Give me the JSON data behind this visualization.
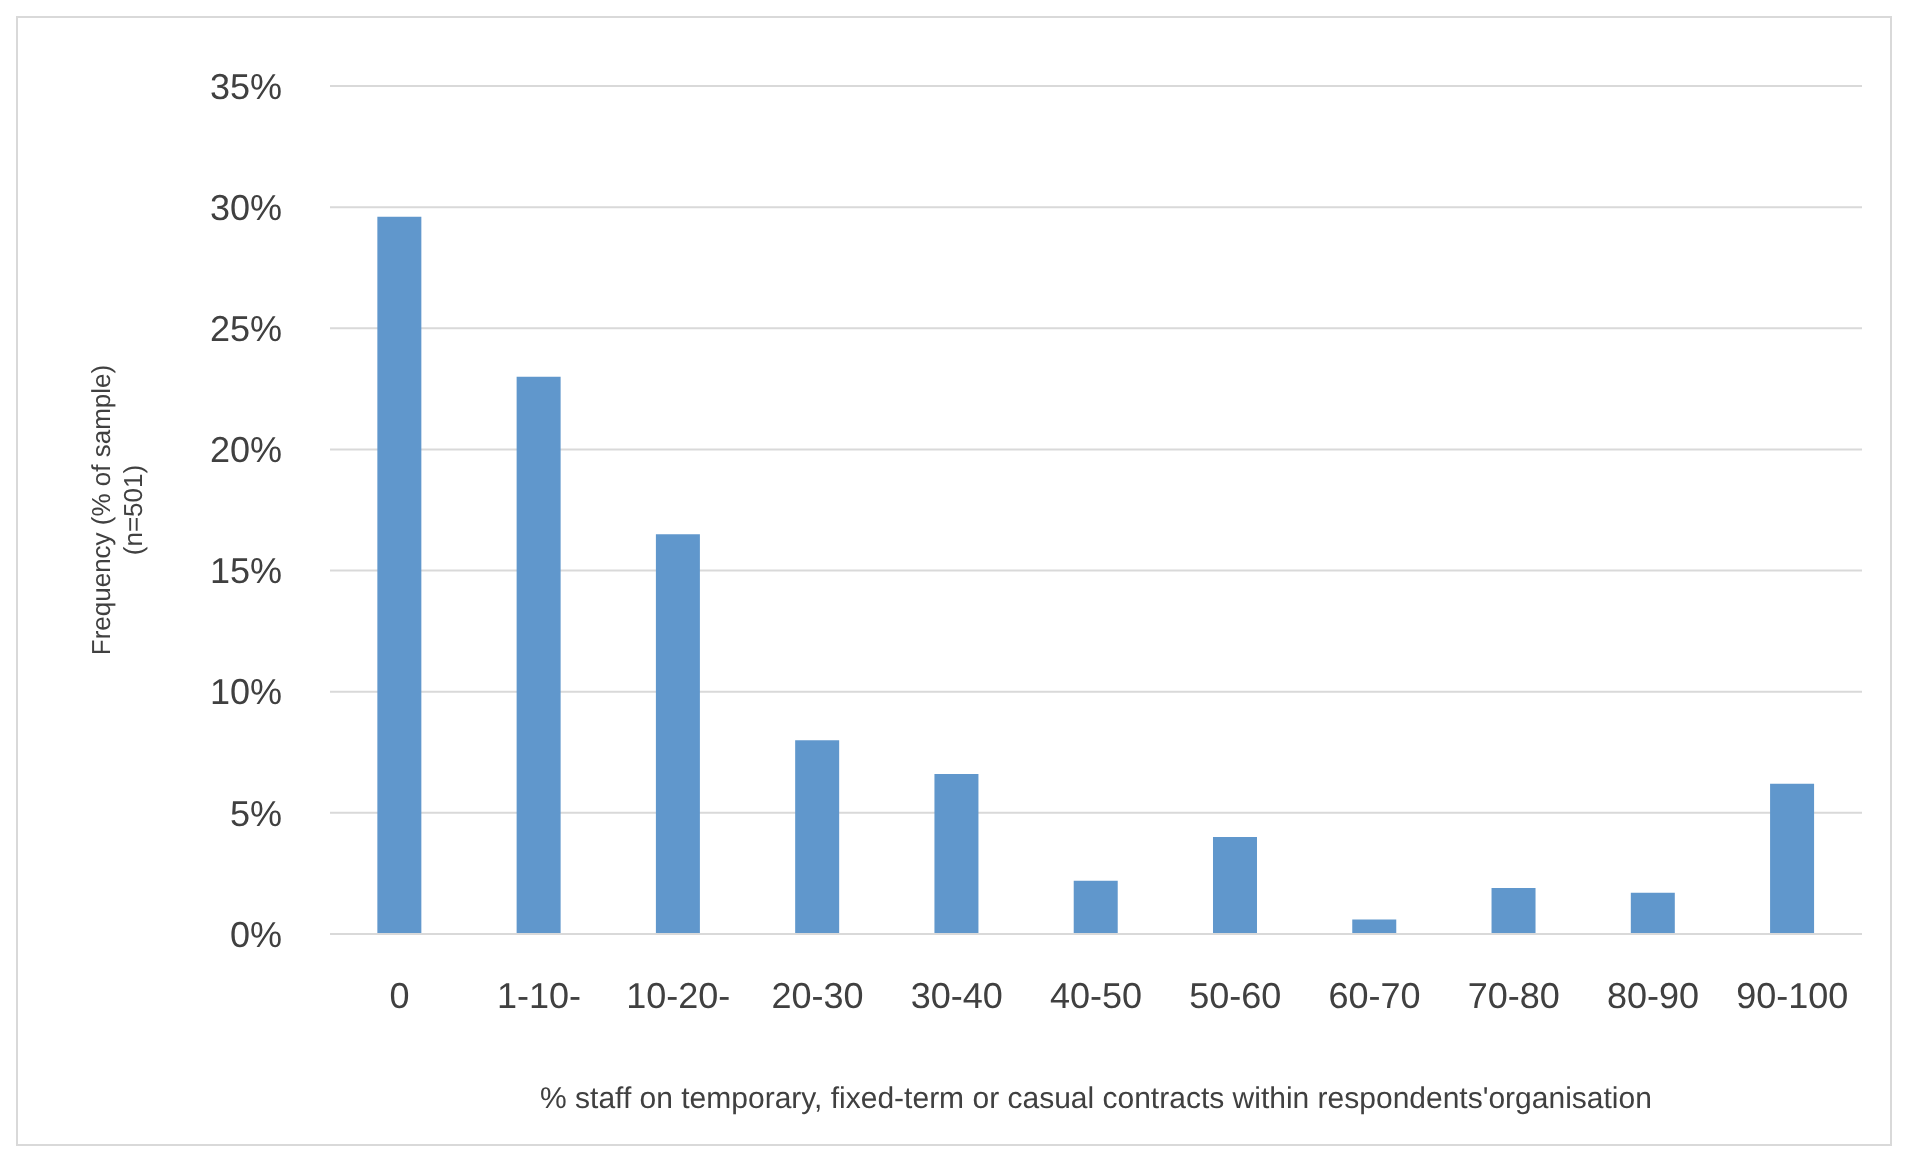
{
  "chart_data": {
    "type": "bar",
    "xlabel": "% staff on temporary, fixed-term or casual contracts within respondents'organisation",
    "ylabel": "Frequency (% of sample)\n(n=501)",
    "categories": [
      "0",
      "1-10-",
      "10-20-",
      "20-30",
      "30-40",
      "40-50",
      "50-60",
      "60-70",
      "70-80",
      "80-90",
      "90-100"
    ],
    "values": [
      29.6,
      23.0,
      16.5,
      8.0,
      6.6,
      2.2,
      4.0,
      0.6,
      1.9,
      1.7,
      6.2
    ],
    "color": "#6097cc",
    "ylim": [
      0,
      35
    ],
    "yticks": [
      {
        "value": 0,
        "label": "0%"
      },
      {
        "value": 5,
        "label": "5%"
      },
      {
        "value": 10,
        "label": "10%"
      },
      {
        "value": 15,
        "label": "15%"
      },
      {
        "value": 20,
        "label": "20%"
      },
      {
        "value": 25,
        "label": "25%"
      },
      {
        "value": 30,
        "label": "30%"
      },
      {
        "value": 35,
        "label": "35%"
      }
    ],
    "grid": "y",
    "legend": false
  }
}
